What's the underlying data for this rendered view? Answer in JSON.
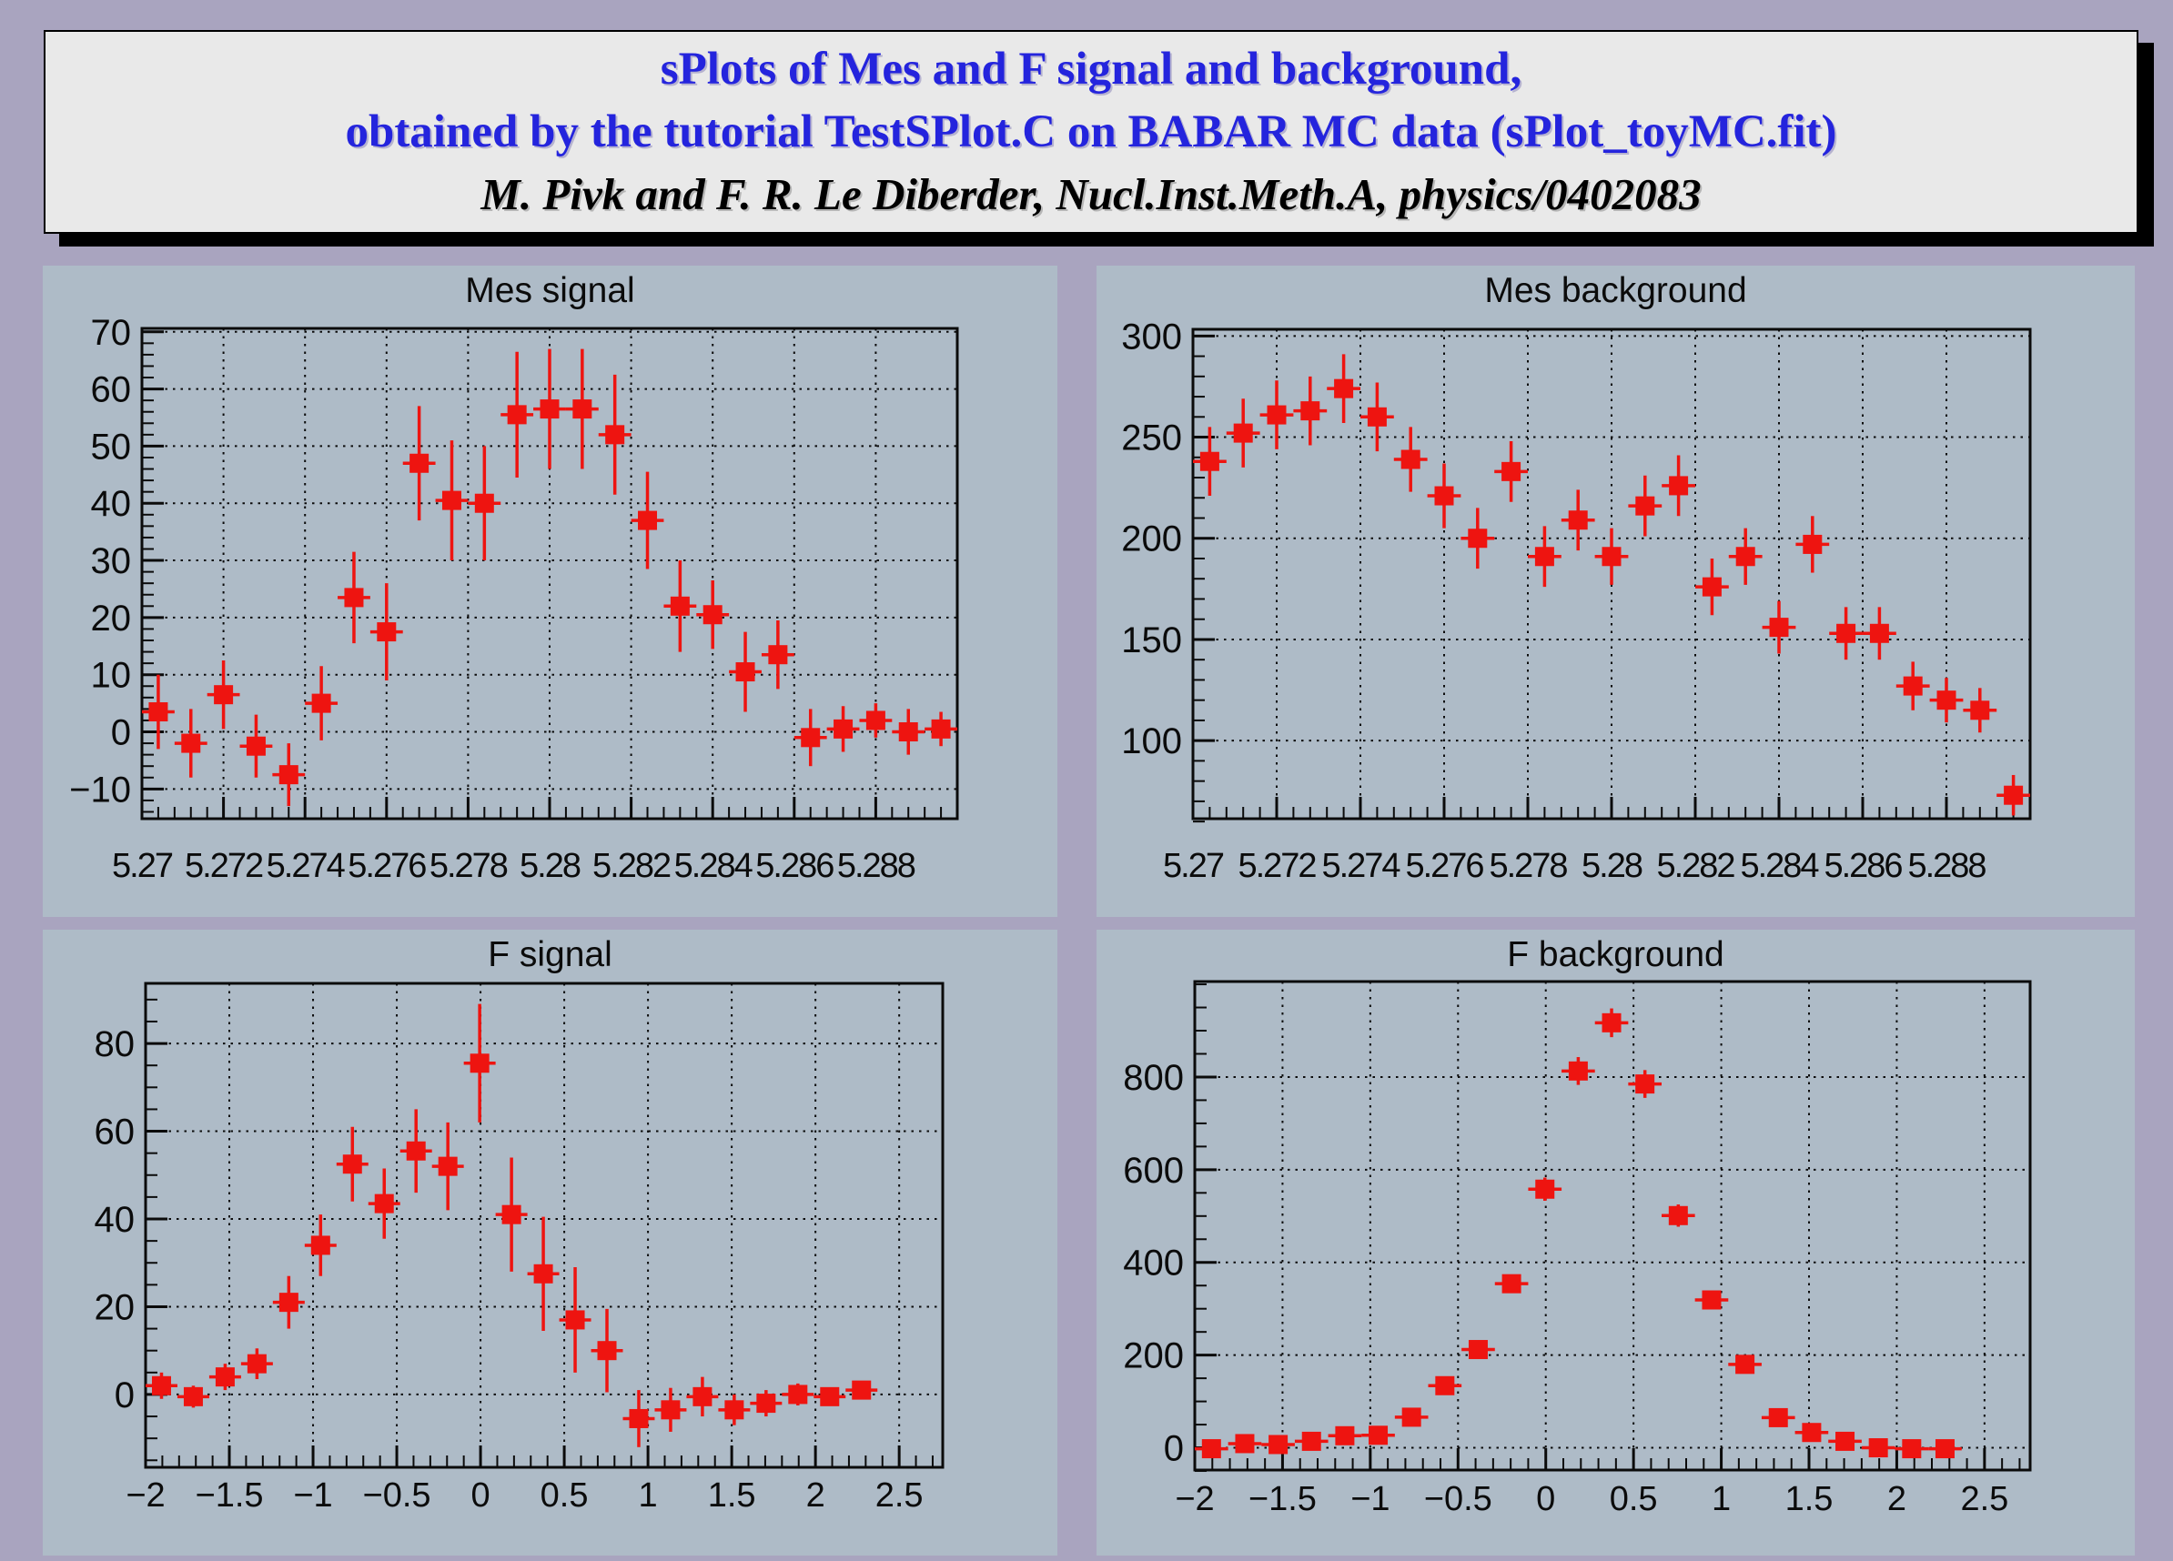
{
  "colors": {
    "page_bg": "#a9a4bf",
    "panel_bg": "#aebbc7",
    "banner_bg": "#e9e9e9",
    "banner_blue": "#2424dd",
    "banner_black": "#000000",
    "marker_red": "#ee1410",
    "axis_ink": "#0b0b0b"
  },
  "banner": {
    "line1": "sPlots of Mes and F signal and background,",
    "line2": "obtained by the tutorial TestSPlot.C on BABAR MC data (sPlot_toyMC.fit)",
    "line3": "M. Pivk and F. R. Le Diberder, Nucl.Inst.Meth.A, physics/0402083"
  },
  "chart_data": [
    {
      "type": "scatter",
      "title": "Mes signal",
      "xlabel": "",
      "ylabel": "",
      "grid": true,
      "xlim": [
        5.27,
        5.29
      ],
      "ylim": [
        -15.2,
        70.6
      ],
      "x_ticks": {
        "values": [
          5.27,
          5.272,
          5.274,
          5.276,
          5.278,
          5.28,
          5.282,
          5.284,
          5.286,
          5.288
        ],
        "labels": [
          "5.27",
          "5.272",
          "5.274",
          "5.276",
          "5.278",
          "5.28",
          "5.282",
          "5.284",
          "5.286",
          "5.288"
        ],
        "minor_step": 0.0004
      },
      "y_ticks": {
        "values": [
          -10,
          0,
          10,
          20,
          30,
          40,
          50,
          60,
          70
        ],
        "labels": [
          "−10",
          "0",
          "10",
          "20",
          "30",
          "40",
          "50",
          "60",
          "70"
        ],
        "minor_step": 2
      },
      "xerr_half": 0.0004,
      "points": {
        "x": [
          5.2704,
          5.2712,
          5.272,
          5.2728,
          5.2736,
          5.2744,
          5.2752,
          5.276,
          5.2768,
          5.2776,
          5.2784,
          5.2792,
          5.28,
          5.2808,
          5.2816,
          5.2824,
          5.2832,
          5.284,
          5.2848,
          5.2856,
          5.2864,
          5.2872,
          5.288,
          5.2888,
          5.2896
        ],
        "y": [
          3.5,
          -2,
          6.5,
          -2.5,
          -7.5,
          5,
          23.5,
          17.5,
          47,
          40.5,
          40,
          55.5,
          56.5,
          56.5,
          52,
          37,
          22,
          20.5,
          10.5,
          13.5,
          -1,
          0.5,
          2,
          0,
          0.5
        ],
        "yerr": [
          6.5,
          6,
          6,
          5.5,
          5.5,
          6.5,
          8,
          8.5,
          10,
          10.5,
          10,
          11,
          10.5,
          10.5,
          10.5,
          8.5,
          8,
          6,
          7,
          6,
          5,
          4,
          3,
          4,
          3
        ]
      }
    },
    {
      "type": "scatter",
      "title": "Mes background",
      "xlabel": "",
      "ylabel": "",
      "grid": true,
      "xlim": [
        5.27,
        5.29
      ],
      "ylim": [
        61.4,
        303.3
      ],
      "x_ticks": {
        "values": [
          5.27,
          5.272,
          5.274,
          5.276,
          5.278,
          5.28,
          5.282,
          5.284,
          5.286,
          5.288
        ],
        "labels": [
          "5.27",
          "5.272",
          "5.274",
          "5.276",
          "5.278",
          "5.28",
          "5.282",
          "5.284",
          "5.286",
          "5.288"
        ],
        "minor_step": 0.0004
      },
      "y_ticks": {
        "values": [
          100,
          150,
          200,
          250,
          300
        ],
        "labels": [
          "100",
          "150",
          "200",
          "250",
          "300"
        ],
        "minor_step": 10
      },
      "xerr_half": 0.0004,
      "points": {
        "x": [
          5.2704,
          5.2712,
          5.272,
          5.2728,
          5.2736,
          5.2744,
          5.2752,
          5.276,
          5.2768,
          5.2776,
          5.2784,
          5.2792,
          5.28,
          5.2808,
          5.2816,
          5.2824,
          5.2832,
          5.284,
          5.2848,
          5.2856,
          5.2864,
          5.2872,
          5.288,
          5.2888,
          5.2896
        ],
        "y": [
          238,
          252,
          261,
          263,
          274,
          260,
          239,
          221,
          200,
          233,
          191,
          209,
          191,
          216,
          226,
          176,
          191,
          156,
          197,
          153,
          153,
          127,
          120,
          115,
          73
        ],
        "yerr": [
          17,
          17,
          17,
          17,
          17,
          17,
          16,
          16,
          15,
          15,
          15,
          15,
          14,
          15,
          15,
          14,
          14,
          13,
          14,
          13,
          13,
          12,
          11,
          11,
          10
        ]
      }
    },
    {
      "type": "scatter",
      "title": "F signal",
      "xlabel": "",
      "ylabel": "",
      "grid": true,
      "xlim": [
        -2,
        2.76
      ],
      "ylim": [
        -16.6,
        93.7
      ],
      "x_ticks": {
        "values": [
          -2,
          -1.5,
          -1,
          -0.5,
          0,
          0.5,
          1,
          1.5,
          2,
          2.5
        ],
        "labels": [
          "−2",
          "−1.5",
          "−1",
          "−0.5",
          "0",
          "0.5",
          "1",
          "1.5",
          "2",
          "2.5"
        ],
        "minor_step": 0.1
      },
      "y_ticks": {
        "values": [
          0,
          20,
          40,
          60,
          80
        ],
        "labels": [
          "0",
          "20",
          "40",
          "60",
          "80"
        ],
        "minor_step": 5
      },
      "xerr_half": 0.095,
      "points": {
        "x": [
          -1.905,
          -1.715,
          -1.525,
          -1.335,
          -1.145,
          -0.955,
          -0.765,
          -0.575,
          -0.385,
          -0.195,
          -0.005,
          0.185,
          0.375,
          0.565,
          0.755,
          0.945,
          1.135,
          1.325,
          1.515,
          1.705,
          1.895,
          2.085,
          2.275
        ],
        "y": [
          2,
          -0.5,
          4,
          7,
          21,
          34,
          52.5,
          43.5,
          55.5,
          52,
          75.5,
          41,
          27.5,
          17,
          10,
          -5.5,
          -3.5,
          -0.5,
          -3.5,
          -2,
          0,
          -0.5,
          1
        ],
        "yerr": [
          3,
          2.5,
          3,
          3.5,
          6,
          7,
          8.5,
          8,
          9.5,
          10,
          13.5,
          13,
          13,
          12,
          9.5,
          6.5,
          5,
          4.5,
          3.5,
          3,
          2.5,
          2,
          1.7
        ]
      }
    },
    {
      "type": "scatter",
      "title": "F background",
      "xlabel": "",
      "ylabel": "",
      "grid": true,
      "xlim": [
        -2,
        2.76
      ],
      "ylim": [
        -48,
        1006
      ],
      "x_ticks": {
        "values": [
          -2,
          -1.5,
          -1,
          -0.5,
          0,
          0.5,
          1,
          1.5,
          2,
          2.5
        ],
        "labels": [
          "−2",
          "−1.5",
          "−1",
          "−0.5",
          "0",
          "0.5",
          "1",
          "1.5",
          "2",
          "2.5"
        ],
        "minor_step": 0.1
      },
      "y_ticks": {
        "values": [
          0,
          200,
          400,
          600,
          800
        ],
        "labels": [
          "0",
          "200",
          "400",
          "600",
          "800"
        ],
        "minor_step": 50
      },
      "xerr_half": 0.095,
      "points": {
        "x": [
          -1.905,
          -1.715,
          -1.525,
          -1.335,
          -1.145,
          -0.955,
          -0.765,
          -0.575,
          -0.385,
          -0.195,
          -0.005,
          0.185,
          0.375,
          0.565,
          0.755,
          0.945,
          1.135,
          1.325,
          1.515,
          1.705,
          1.895,
          2.085,
          2.275
        ],
        "y": [
          -2,
          9,
          7,
          14,
          26,
          27,
          66,
          134,
          212,
          354,
          558,
          813,
          917,
          785,
          501,
          319,
          180,
          65,
          33,
          14,
          0,
          -2,
          -2
        ],
        "yerr": [
          8,
          9,
          9,
          10,
          10,
          10,
          11,
          13,
          16,
          20,
          25,
          30,
          31,
          30,
          24,
          19,
          15,
          11,
          9,
          8,
          7,
          7,
          7
        ]
      }
    }
  ]
}
